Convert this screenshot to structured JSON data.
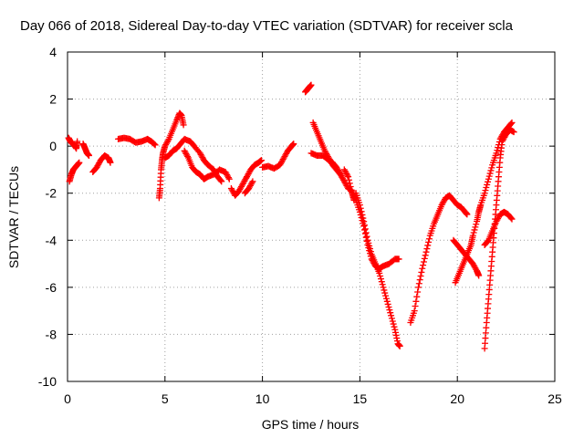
{
  "chart_data": {
    "type": "scatter",
    "title": "Day 066 of 2018, Sidereal Day-to-day VTEC variation (SDTVAR) for receiver scla",
    "xlabel": "GPS time / hours",
    "ylabel": "SDTVAR / TECUs",
    "xlim": [
      0,
      25
    ],
    "ylim": [
      -10,
      4
    ],
    "xticks": [
      0,
      5,
      10,
      15,
      20,
      25
    ],
    "yticks": [
      4,
      2,
      0,
      -2,
      -4,
      -6,
      -8,
      -10
    ],
    "xtick_labels": [
      "0",
      "5",
      "10",
      "15",
      "20",
      "25"
    ],
    "ytick_labels": [
      "4",
      "2",
      "0",
      "-2",
      "-4",
      "-6",
      "-8",
      "-10"
    ],
    "grid": true,
    "marker": "+",
    "color": "#ff0000",
    "series": [
      {
        "points": [
          [
            0.05,
            0.35
          ],
          [
            0.15,
            0.2
          ],
          [
            0.25,
            0.1
          ],
          [
            0.35,
            0.05
          ],
          [
            0.45,
            -0.1
          ],
          [
            0.5,
            0.2
          ]
        ]
      },
      {
        "points": [
          [
            0.1,
            -1.5
          ],
          [
            0.2,
            -1.2
          ],
          [
            0.3,
            -1.0
          ],
          [
            0.4,
            -0.9
          ],
          [
            0.5,
            -0.8
          ],
          [
            0.6,
            -0.7
          ]
        ]
      },
      {
        "points": [
          [
            0.8,
            0.1
          ],
          [
            0.9,
            -0.1
          ],
          [
            1.0,
            -0.3
          ],
          [
            1.1,
            -0.4
          ]
        ]
      },
      {
        "points": [
          [
            1.3,
            -1.1
          ],
          [
            1.5,
            -0.9
          ],
          [
            1.7,
            -0.6
          ],
          [
            1.9,
            -0.4
          ],
          [
            2.1,
            -0.5
          ],
          [
            2.2,
            -0.7
          ]
        ]
      },
      {
        "points": [
          [
            2.6,
            0.3
          ],
          [
            2.9,
            0.35
          ],
          [
            3.2,
            0.3
          ],
          [
            3.5,
            0.15
          ],
          [
            3.8,
            0.2
          ],
          [
            4.1,
            0.3
          ],
          [
            4.3,
            0.2
          ],
          [
            4.5,
            0.05
          ]
        ]
      },
      {
        "points": [
          [
            4.7,
            -2.2
          ],
          [
            4.75,
            -1.8
          ],
          [
            4.8,
            -1.0
          ],
          [
            4.85,
            -0.6
          ],
          [
            4.9,
            -0.3
          ],
          [
            5.0,
            0.0
          ],
          [
            5.2,
            0.3
          ],
          [
            5.4,
            0.7
          ],
          [
            5.6,
            1.1
          ],
          [
            5.75,
            1.4
          ],
          [
            5.85,
            1.3
          ],
          [
            5.95,
            0.9
          ]
        ]
      },
      {
        "points": [
          [
            5.0,
            -0.5
          ],
          [
            5.2,
            -0.4
          ],
          [
            5.4,
            -0.2
          ],
          [
            5.6,
            -0.1
          ],
          [
            5.8,
            0.1
          ],
          [
            6.0,
            0.3
          ],
          [
            6.3,
            0.2
          ],
          [
            6.5,
            0.0
          ],
          [
            6.8,
            -0.3
          ],
          [
            7.0,
            -0.6
          ],
          [
            7.2,
            -0.8
          ],
          [
            7.5,
            -1.0
          ],
          [
            7.7,
            -1.3
          ],
          [
            7.9,
            -1.5
          ]
        ]
      },
      {
        "points": [
          [
            6.0,
            -0.2
          ],
          [
            6.2,
            -0.5
          ],
          [
            6.4,
            -0.9
          ],
          [
            6.6,
            -1.1
          ],
          [
            6.8,
            -1.2
          ],
          [
            7.0,
            -1.4
          ],
          [
            7.2,
            -1.3
          ],
          [
            7.5,
            -1.2
          ],
          [
            7.8,
            -1.0
          ],
          [
            8.1,
            -1.1
          ],
          [
            8.3,
            -1.4
          ]
        ]
      },
      {
        "points": [
          [
            8.4,
            -1.8
          ],
          [
            8.6,
            -2.1
          ],
          [
            8.8,
            -1.9
          ],
          [
            9.0,
            -1.6
          ],
          [
            9.2,
            -1.3
          ],
          [
            9.4,
            -1.0
          ],
          [
            9.6,
            -0.8
          ],
          [
            9.8,
            -0.7
          ],
          [
            9.95,
            -0.6
          ]
        ]
      },
      {
        "points": [
          [
            9.1,
            -2.0
          ],
          [
            9.3,
            -1.8
          ],
          [
            9.5,
            -1.5
          ]
        ]
      },
      {
        "points": [
          [
            10.0,
            -0.9
          ],
          [
            10.3,
            -0.85
          ],
          [
            10.6,
            -0.95
          ],
          [
            10.9,
            -0.8
          ],
          [
            11.1,
            -0.5
          ],
          [
            11.3,
            -0.2
          ],
          [
            11.5,
            0.0
          ],
          [
            11.6,
            0.1
          ]
        ]
      },
      {
        "points": [
          [
            12.2,
            2.3
          ],
          [
            12.3,
            2.4
          ],
          [
            12.4,
            2.5
          ],
          [
            12.5,
            2.6
          ]
        ]
      },
      {
        "points": [
          [
            12.5,
            -0.3
          ],
          [
            12.8,
            -0.4
          ],
          [
            13.1,
            -0.4
          ],
          [
            13.4,
            -0.6
          ],
          [
            13.6,
            -0.7
          ],
          [
            13.8,
            -0.9
          ],
          [
            14.0,
            -1.2
          ]
        ]
      },
      {
        "points": [
          [
            12.6,
            1.0
          ],
          [
            12.8,
            0.6
          ],
          [
            13.0,
            0.2
          ],
          [
            13.2,
            -0.2
          ],
          [
            13.4,
            -0.5
          ],
          [
            13.6,
            -0.8
          ],
          [
            13.8,
            -1.0
          ],
          [
            14.0,
            -1.2
          ],
          [
            14.2,
            -1.5
          ],
          [
            14.4,
            -1.8
          ],
          [
            14.6,
            -1.9
          ],
          [
            14.8,
            -2.3
          ],
          [
            15.0,
            -2.8
          ],
          [
            15.2,
            -3.4
          ],
          [
            15.4,
            -4.2
          ],
          [
            15.6,
            -4.8
          ],
          [
            15.8,
            -5.1
          ],
          [
            16.0,
            -5.2
          ],
          [
            16.2,
            -5.1
          ],
          [
            16.5,
            -5.0
          ],
          [
            16.8,
            -4.8
          ],
          [
            17.0,
            -4.8
          ]
        ]
      },
      {
        "points": [
          [
            14.2,
            -1.0
          ],
          [
            14.4,
            -1.3
          ],
          [
            14.6,
            -2.0
          ],
          [
            14.7,
            -2.3
          ]
        ]
      },
      {
        "points": [
          [
            14.8,
            -2.0
          ],
          [
            15.0,
            -2.5
          ],
          [
            15.2,
            -3.2
          ],
          [
            15.4,
            -4.0
          ],
          [
            15.6,
            -4.6
          ],
          [
            15.8,
            -5.0
          ],
          [
            16.0,
            -5.4
          ],
          [
            16.2,
            -6.0
          ],
          [
            16.4,
            -6.6
          ],
          [
            16.6,
            -7.2
          ],
          [
            16.8,
            -7.8
          ],
          [
            16.95,
            -8.4
          ],
          [
            17.05,
            -8.5
          ]
        ]
      },
      {
        "points": [
          [
            17.6,
            -7.5
          ],
          [
            17.8,
            -7.0
          ],
          [
            18.0,
            -6.0
          ],
          [
            18.2,
            -5.2
          ],
          [
            18.4,
            -4.5
          ],
          [
            18.6,
            -3.8
          ],
          [
            18.8,
            -3.3
          ],
          [
            19.0,
            -2.9
          ],
          [
            19.2,
            -2.5
          ],
          [
            19.4,
            -2.2
          ],
          [
            19.6,
            -2.1
          ],
          [
            19.8,
            -2.3
          ],
          [
            20.0,
            -2.5
          ],
          [
            20.2,
            -2.6
          ],
          [
            20.4,
            -2.8
          ],
          [
            20.5,
            -2.9
          ]
        ]
      },
      {
        "points": [
          [
            19.8,
            -4.0
          ],
          [
            20.0,
            -4.2
          ],
          [
            20.2,
            -4.4
          ],
          [
            20.4,
            -4.6
          ],
          [
            20.6,
            -4.8
          ],
          [
            20.8,
            -5.0
          ],
          [
            21.0,
            -5.3
          ],
          [
            21.1,
            -5.5
          ]
        ]
      },
      {
        "points": [
          [
            19.9,
            -5.8
          ],
          [
            20.1,
            -5.4
          ],
          [
            20.3,
            -5.0
          ],
          [
            20.5,
            -4.6
          ],
          [
            20.7,
            -4.2
          ],
          [
            20.8,
            -3.8
          ],
          [
            21.0,
            -3.2
          ],
          [
            21.1,
            -2.8
          ],
          [
            21.2,
            -2.5
          ],
          [
            21.4,
            -2.0
          ],
          [
            21.6,
            -1.4
          ],
          [
            21.8,
            -0.8
          ],
          [
            22.0,
            -0.3
          ],
          [
            22.2,
            0.3
          ],
          [
            22.4,
            0.6
          ],
          [
            22.6,
            0.8
          ],
          [
            22.8,
            1.0
          ]
        ]
      },
      {
        "points": [
          [
            21.4,
            -8.6
          ],
          [
            21.5,
            -7.5
          ],
          [
            21.6,
            -6.5
          ],
          [
            21.7,
            -5.5
          ],
          [
            21.8,
            -4.5
          ],
          [
            21.9,
            -3.5
          ],
          [
            22.0,
            -2.5
          ],
          [
            22.1,
            -1.5
          ],
          [
            22.2,
            -0.5
          ],
          [
            22.3,
            0.2
          ],
          [
            22.5,
            0.5
          ],
          [
            22.7,
            0.7
          ],
          [
            22.9,
            0.6
          ]
        ]
      },
      {
        "points": [
          [
            21.4,
            -4.2
          ],
          [
            21.6,
            -4.0
          ],
          [
            21.8,
            -3.6
          ],
          [
            22.0,
            -3.2
          ],
          [
            22.2,
            -2.9
          ],
          [
            22.4,
            -2.8
          ],
          [
            22.6,
            -2.9
          ],
          [
            22.8,
            -3.1
          ]
        ]
      }
    ]
  }
}
